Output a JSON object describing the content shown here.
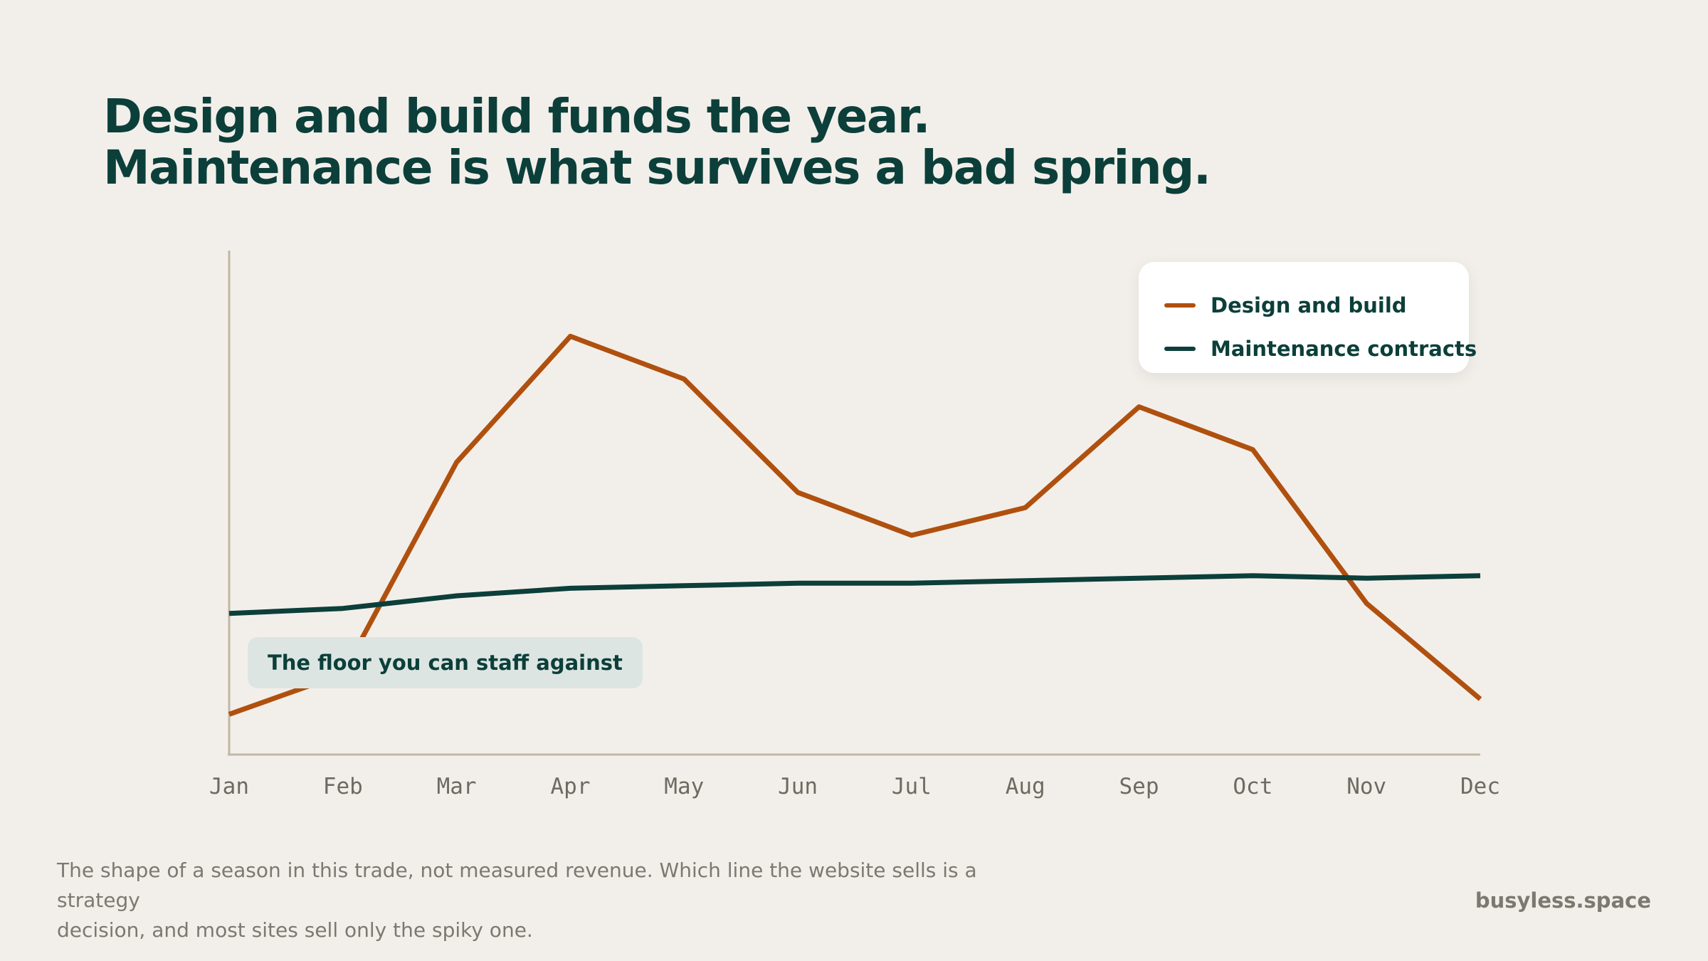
{
  "headline": {
    "line1": "Design and build funds the year.",
    "line2": "Maintenance is what survives a bad spring."
  },
  "chart_data": {
    "type": "line",
    "categories": [
      "Jan",
      "Feb",
      "Mar",
      "Apr",
      "May",
      "Jun",
      "Jul",
      "Aug",
      "Sep",
      "Oct",
      "Nov",
      "Dec"
    ],
    "series": [
      {
        "name": "Design and build",
        "color": "#b0500f",
        "values": [
          8,
          16,
          58,
          83,
          74.5,
          52,
          43.5,
          49,
          69,
          60.5,
          30,
          11
        ]
      },
      {
        "name": "Maintenance contracts",
        "color": "#0c3f3a",
        "values": [
          28,
          29,
          31.5,
          33,
          33.5,
          34,
          34,
          34.5,
          35,
          35.5,
          35,
          35.5
        ]
      }
    ],
    "ylim": [
      0,
      100
    ],
    "grid": false,
    "y_ticks_shown": false,
    "legend_position": "top-right",
    "annotation": "The floor you can staff against"
  },
  "footnote": {
    "line1": "The shape of a season in this trade, not measured revenue. Which line the website sells is a strategy",
    "line2": "decision, and most sites sell only the spiky one."
  },
  "brand": "busyless.space",
  "colors": {
    "background": "#f2efea",
    "ink": "#0c3f3a",
    "axis": "#c2b7a5",
    "muted": "#7d7870",
    "annotation_bg": "#dde5e3"
  }
}
